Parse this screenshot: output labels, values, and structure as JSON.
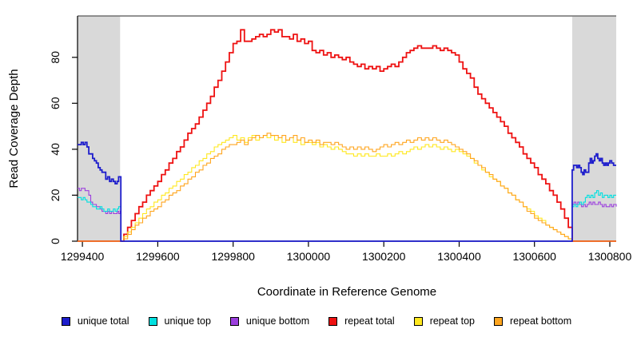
{
  "chart_data": {
    "type": "line",
    "title": "",
    "xlabel": "Coordinate in Reference Genome",
    "ylabel": "Read Coverage Depth",
    "xlim": [
      1299387,
      1300817
    ],
    "ylim": [
      0,
      98
    ],
    "x_ticks": [
      1299400,
      1299600,
      1299800,
      1300000,
      1300200,
      1300400,
      1300600,
      1300800
    ],
    "y_ticks": [
      0,
      20,
      40,
      60,
      80
    ],
    "grid": false,
    "legend_position": "bottom",
    "frame_color": "#6f6f6f",
    "axis_color": "#000000",
    "shaded_regions": [
      {
        "from": 1299387,
        "to": 1299500,
        "color": "#D9D9D9"
      },
      {
        "from": 1300700,
        "to": 1300817,
        "color": "#D9D9D9"
      }
    ],
    "draw_order": [
      "unique bottom",
      "unique top",
      "repeat total",
      "repeat top",
      "repeat bottom",
      "unique total"
    ],
    "series": [
      {
        "name": "unique total",
        "color": "#1d1dcc",
        "width": 1.8,
        "points": [
          [
            1299387,
            42
          ],
          [
            1299392,
            42
          ],
          [
            1299397,
            43
          ],
          [
            1299402,
            42
          ],
          [
            1299407,
            43
          ],
          [
            1299412,
            41
          ],
          [
            1299417,
            38
          ],
          [
            1299422,
            38
          ],
          [
            1299427,
            36
          ],
          [
            1299432,
            35
          ],
          [
            1299437,
            34
          ],
          [
            1299442,
            32
          ],
          [
            1299447,
            31
          ],
          [
            1299452,
            30
          ],
          [
            1299457,
            30
          ],
          [
            1299462,
            27
          ],
          [
            1299467,
            28
          ],
          [
            1299472,
            26
          ],
          [
            1299477,
            27
          ],
          [
            1299482,
            26
          ],
          [
            1299487,
            25
          ],
          [
            1299492,
            26
          ],
          [
            1299496,
            28
          ],
          [
            1299500,
            28
          ],
          [
            1299502,
            0
          ],
          [
            1300698,
            0
          ],
          [
            1300700,
            31
          ],
          [
            1300704,
            33
          ],
          [
            1300708,
            33
          ],
          [
            1300712,
            32
          ],
          [
            1300716,
            33
          ],
          [
            1300720,
            32
          ],
          [
            1300724,
            30
          ],
          [
            1300728,
            29
          ],
          [
            1300732,
            31
          ],
          [
            1300736,
            30
          ],
          [
            1300740,
            30
          ],
          [
            1300744,
            34
          ],
          [
            1300748,
            36
          ],
          [
            1300752,
            34
          ],
          [
            1300756,
            35
          ],
          [
            1300760,
            37
          ],
          [
            1300764,
            38
          ],
          [
            1300768,
            36
          ],
          [
            1300772,
            35
          ],
          [
            1300776,
            36
          ],
          [
            1300780,
            34
          ],
          [
            1300784,
            33
          ],
          [
            1300788,
            34
          ],
          [
            1300792,
            33
          ],
          [
            1300796,
            34
          ],
          [
            1300800,
            35
          ],
          [
            1300805,
            34
          ],
          [
            1300810,
            33
          ],
          [
            1300817,
            33
          ]
        ]
      },
      {
        "name": "unique top",
        "color": "#00e0e0",
        "width": 1.1,
        "points": [
          [
            1299387,
            19
          ],
          [
            1299392,
            19
          ],
          [
            1299397,
            18
          ],
          [
            1299402,
            19
          ],
          [
            1299407,
            18
          ],
          [
            1299412,
            17
          ],
          [
            1299417,
            17
          ],
          [
            1299422,
            16
          ],
          [
            1299427,
            15
          ],
          [
            1299432,
            15
          ],
          [
            1299437,
            14
          ],
          [
            1299442,
            14
          ],
          [
            1299447,
            15
          ],
          [
            1299452,
            14
          ],
          [
            1299457,
            13
          ],
          [
            1299462,
            13
          ],
          [
            1299467,
            14
          ],
          [
            1299472,
            13
          ],
          [
            1299477,
            13
          ],
          [
            1299482,
            14
          ],
          [
            1299487,
            13
          ],
          [
            1299492,
            14
          ],
          [
            1299496,
            15
          ],
          [
            1299500,
            15
          ],
          [
            1299502,
            0
          ],
          [
            1300698,
            0
          ],
          [
            1300700,
            15
          ],
          [
            1300705,
            16
          ],
          [
            1300710,
            15
          ],
          [
            1300715,
            16
          ],
          [
            1300720,
            17
          ],
          [
            1300725,
            16
          ],
          [
            1300730,
            17
          ],
          [
            1300735,
            19
          ],
          [
            1300740,
            20
          ],
          [
            1300745,
            19
          ],
          [
            1300750,
            20
          ],
          [
            1300755,
            19
          ],
          [
            1300760,
            21
          ],
          [
            1300765,
            22
          ],
          [
            1300770,
            20
          ],
          [
            1300775,
            21
          ],
          [
            1300780,
            19
          ],
          [
            1300785,
            20
          ],
          [
            1300790,
            20
          ],
          [
            1300795,
            19
          ],
          [
            1300800,
            20
          ],
          [
            1300805,
            19
          ],
          [
            1300810,
            20
          ],
          [
            1300817,
            20
          ]
        ]
      },
      {
        "name": "unique bottom",
        "color": "#9c3fde",
        "width": 1.1,
        "points": [
          [
            1299387,
            23
          ],
          [
            1299392,
            22
          ],
          [
            1299397,
            23
          ],
          [
            1299402,
            23
          ],
          [
            1299407,
            22
          ],
          [
            1299412,
            22
          ],
          [
            1299417,
            20
          ],
          [
            1299422,
            17
          ],
          [
            1299427,
            16
          ],
          [
            1299432,
            16
          ],
          [
            1299437,
            15
          ],
          [
            1299442,
            15
          ],
          [
            1299447,
            14
          ],
          [
            1299452,
            13
          ],
          [
            1299457,
            13
          ],
          [
            1299462,
            12
          ],
          [
            1299467,
            13
          ],
          [
            1299472,
            12
          ],
          [
            1299477,
            13
          ],
          [
            1299482,
            12
          ],
          [
            1299487,
            12
          ],
          [
            1299492,
            13
          ],
          [
            1299496,
            12
          ],
          [
            1299500,
            13
          ],
          [
            1299502,
            0
          ],
          [
            1300698,
            0
          ],
          [
            1300700,
            16
          ],
          [
            1300705,
            17
          ],
          [
            1300710,
            16
          ],
          [
            1300715,
            17
          ],
          [
            1300720,
            16
          ],
          [
            1300725,
            15
          ],
          [
            1300730,
            16
          ],
          [
            1300735,
            15
          ],
          [
            1300740,
            16
          ],
          [
            1300745,
            17
          ],
          [
            1300750,
            16
          ],
          [
            1300755,
            17
          ],
          [
            1300760,
            16
          ],
          [
            1300765,
            16
          ],
          [
            1300770,
            17
          ],
          [
            1300775,
            16
          ],
          [
            1300780,
            15
          ],
          [
            1300785,
            16
          ],
          [
            1300790,
            15
          ],
          [
            1300795,
            15
          ],
          [
            1300800,
            16
          ],
          [
            1300805,
            15
          ],
          [
            1300810,
            16
          ],
          [
            1300817,
            15
          ]
        ]
      },
      {
        "name": "repeat total",
        "color": "#ee1111",
        "width": 1.8,
        "x0": 1299500,
        "dx": 10,
        "zero_pad": [
          1299387,
          1300817
        ],
        "values": [
          0,
          3,
          6,
          9,
          12,
          15,
          17,
          20,
          22,
          24,
          26,
          29,
          31,
          34,
          36,
          39,
          41,
          44,
          47,
          49,
          51,
          54,
          57,
          60,
          63,
          67,
          70,
          74,
          78,
          82,
          86,
          87,
          92,
          87,
          87,
          88,
          89,
          90,
          89,
          90,
          92,
          91,
          92,
          89,
          89,
          88,
          90,
          87,
          88,
          86,
          87,
          83,
          82,
          83,
          81,
          82,
          80,
          81,
          80,
          79,
          80,
          78,
          77,
          76,
          77,
          75,
          76,
          75,
          76,
          74,
          75,
          76,
          77,
          76,
          78,
          80,
          82,
          83,
          84,
          85,
          84,
          84,
          84,
          85,
          84,
          83,
          84,
          83,
          82,
          81,
          78,
          75,
          73,
          71,
          67,
          64,
          62,
          60,
          58,
          56,
          54,
          52,
          50,
          47,
          45,
          43,
          41,
          38,
          36,
          34,
          32,
          29,
          27,
          25,
          22,
          20,
          17,
          14,
          10,
          6,
          0
        ]
      },
      {
        "name": "repeat top",
        "color": "#ffe81e",
        "width": 1.1,
        "x0": 1299500,
        "dx": 10,
        "zero_pad": [
          1299387,
          1300817
        ],
        "values": [
          0,
          2,
          4,
          6,
          8,
          10,
          12,
          14,
          15,
          17,
          18,
          20,
          21,
          23,
          24,
          26,
          27,
          29,
          30,
          32,
          33,
          35,
          36,
          38,
          39,
          41,
          42,
          43,
          44,
          45,
          46,
          44,
          45,
          43,
          45,
          46,
          44,
          45,
          46,
          45,
          46,
          44,
          45,
          43,
          44,
          45,
          43,
          44,
          42,
          43,
          43,
          42,
          43,
          41,
          42,
          41,
          40,
          41,
          40,
          39,
          38,
          38,
          37,
          38,
          37,
          38,
          37,
          37,
          38,
          37,
          37,
          38,
          37,
          38,
          39,
          38,
          39,
          40,
          41,
          40,
          41,
          42,
          41,
          42,
          41,
          40,
          41,
          40,
          39,
          40,
          39,
          38,
          37,
          36,
          34,
          33,
          31,
          30,
          28,
          27,
          26,
          24,
          23,
          21,
          20,
          18,
          17,
          15,
          14,
          13,
          11,
          10,
          9,
          7,
          6,
          5,
          4,
          3,
          2,
          1,
          0
        ]
      },
      {
        "name": "repeat bottom",
        "color": "#ffa51e",
        "width": 1.1,
        "x0": 1299500,
        "dx": 10,
        "zero_pad": [
          1299387,
          1300817
        ],
        "values": [
          0,
          1,
          3,
          5,
          7,
          8,
          10,
          11,
          13,
          14,
          15,
          17,
          18,
          20,
          21,
          22,
          24,
          25,
          27,
          28,
          30,
          31,
          33,
          34,
          36,
          37,
          38,
          40,
          41,
          42,
          42,
          43,
          44,
          42,
          44,
          45,
          46,
          45,
          46,
          47,
          46,
          46,
          45,
          46,
          44,
          45,
          46,
          44,
          45,
          43,
          44,
          43,
          44,
          42,
          43,
          43,
          42,
          43,
          42,
          41,
          40,
          41,
          40,
          41,
          40,
          41,
          40,
          39,
          40,
          41,
          42,
          41,
          42,
          43,
          42,
          43,
          44,
          43,
          44,
          45,
          44,
          45,
          44,
          45,
          44,
          43,
          44,
          43,
          42,
          41,
          40,
          39,
          38,
          36,
          35,
          33,
          32,
          30,
          29,
          27,
          26,
          24,
          23,
          21,
          20,
          18,
          17,
          15,
          13,
          12,
          10,
          9,
          8,
          7,
          6,
          5,
          4,
          3,
          2,
          1,
          0
        ]
      }
    ]
  }
}
